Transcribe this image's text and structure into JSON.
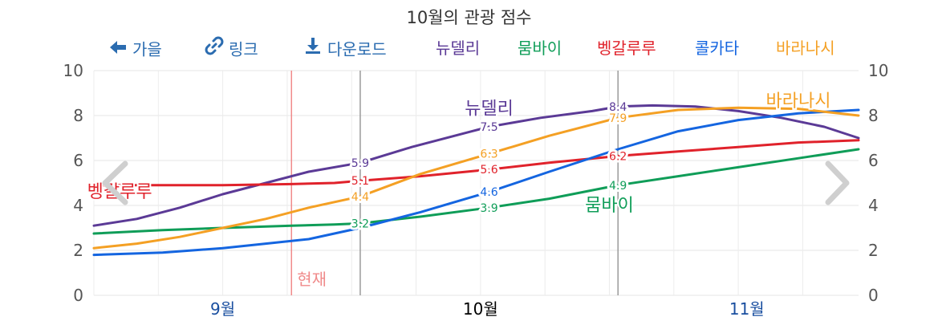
{
  "title": "10월의 관광 점수",
  "toolbar": {
    "back_label": "가을",
    "link_label": "링크",
    "download_label": "다운로드",
    "link_color": "#2b6cb0"
  },
  "icons": {
    "back": "arrow-left-icon",
    "link": "chain-link-icon",
    "download": "download-icon",
    "prev": "chevron-left-icon",
    "next": "chevron-right-icon"
  },
  "now_label": "현재",
  "chart_data": {
    "type": "line",
    "title": "10월의 관광 점수",
    "xlabel": "",
    "ylabel": "",
    "ylim": [
      0,
      10
    ],
    "y_ticks": [
      0,
      2,
      4,
      6,
      8,
      10
    ],
    "x_ticks": [
      {
        "label": "9월",
        "day": 15,
        "color": "#1a4fa0"
      },
      {
        "label": "10월",
        "day": 45,
        "color": "#000000"
      },
      {
        "label": "11월",
        "day": 76,
        "color": "#1a4fa0"
      }
    ],
    "x_range_days": [
      0,
      89
    ],
    "x_unit": "days from 1 Sep",
    "grid": true,
    "now_day": 23,
    "period_markers_days": [
      31,
      61
    ],
    "series": [
      {
        "name": "뉴델리",
        "color": "#5b3a96",
        "label_day": 46,
        "label_value": 8.3,
        "points": [
          [
            0,
            3.1
          ],
          [
            5,
            3.4
          ],
          [
            10,
            3.9
          ],
          [
            15,
            4.5
          ],
          [
            20,
            5.0
          ],
          [
            25,
            5.5
          ],
          [
            31,
            5.9
          ],
          [
            37,
            6.6
          ],
          [
            44,
            7.3
          ],
          [
            46,
            7.5
          ],
          [
            52,
            7.9
          ],
          [
            58,
            8.2
          ],
          [
            61,
            8.4
          ],
          [
            65,
            8.45
          ],
          [
            70,
            8.4
          ],
          [
            75,
            8.2
          ],
          [
            80,
            7.9
          ],
          [
            85,
            7.5
          ],
          [
            89,
            7.0
          ]
        ],
        "labels": [
          {
            "day": 31,
            "value": 5.9,
            "text": "5.9"
          },
          {
            "day": 46,
            "value": 7.5,
            "text": "7.5"
          },
          {
            "day": 61,
            "value": 8.4,
            "text": "8.4"
          }
        ]
      },
      {
        "name": "뭄바이",
        "color": "#0f9d58",
        "label_day": 60,
        "label_value": 4.0,
        "points": [
          [
            0,
            2.75
          ],
          [
            8,
            2.9
          ],
          [
            15,
            3.0
          ],
          [
            23,
            3.1
          ],
          [
            28,
            3.15
          ],
          [
            31,
            3.2
          ],
          [
            38,
            3.5
          ],
          [
            46,
            3.9
          ],
          [
            53,
            4.3
          ],
          [
            61,
            4.9
          ],
          [
            68,
            5.3
          ],
          [
            75,
            5.7
          ],
          [
            82,
            6.1
          ],
          [
            89,
            6.5
          ]
        ],
        "labels": [
          {
            "day": 31,
            "value": 3.2,
            "text": "3.2"
          },
          {
            "day": 46,
            "value": 3.9,
            "text": "3.9"
          },
          {
            "day": 61,
            "value": 4.9,
            "text": "4.9"
          }
        ]
      },
      {
        "name": "벵갈루루",
        "color": "#e0222b",
        "label_day": 3,
        "label_value": 4.6,
        "points": [
          [
            0,
            4.9
          ],
          [
            8,
            4.9
          ],
          [
            15,
            4.9
          ],
          [
            23,
            4.95
          ],
          [
            28,
            5.0
          ],
          [
            31,
            5.1
          ],
          [
            38,
            5.3
          ],
          [
            46,
            5.6
          ],
          [
            53,
            5.9
          ],
          [
            61,
            6.2
          ],
          [
            68,
            6.4
          ],
          [
            75,
            6.6
          ],
          [
            82,
            6.8
          ],
          [
            89,
            6.9
          ]
        ],
        "labels": [
          {
            "day": 31,
            "value": 5.1,
            "text": "5.1"
          },
          {
            "day": 46,
            "value": 5.6,
            "text": "5.6"
          },
          {
            "day": 61,
            "value": 6.2,
            "text": "6.2"
          }
        ]
      },
      {
        "name": "콜카타",
        "color": "#1465e0",
        "label_day": 0,
        "label_value": 0,
        "points": [
          [
            0,
            1.8
          ],
          [
            8,
            1.9
          ],
          [
            15,
            2.1
          ],
          [
            20,
            2.3
          ],
          [
            25,
            2.5
          ],
          [
            31,
            3.0
          ],
          [
            38,
            3.7
          ],
          [
            46,
            4.6
          ],
          [
            53,
            5.5
          ],
          [
            61,
            6.5
          ],
          [
            68,
            7.3
          ],
          [
            75,
            7.8
          ],
          [
            82,
            8.1
          ],
          [
            89,
            8.25
          ]
        ],
        "labels": [
          {
            "day": 46,
            "value": 4.6,
            "text": "4.6"
          }
        ]
      },
      {
        "name": "바라나시",
        "color": "#f4a024",
        "label_day": 82,
        "label_value": 8.65,
        "points": [
          [
            0,
            2.1
          ],
          [
            5,
            2.3
          ],
          [
            10,
            2.6
          ],
          [
            15,
            3.0
          ],
          [
            20,
            3.4
          ],
          [
            25,
            3.9
          ],
          [
            31,
            4.4
          ],
          [
            38,
            5.4
          ],
          [
            46,
            6.3
          ],
          [
            53,
            7.1
          ],
          [
            61,
            7.9
          ],
          [
            68,
            8.25
          ],
          [
            75,
            8.35
          ],
          [
            82,
            8.3
          ],
          [
            89,
            8.0
          ]
        ],
        "labels": [
          {
            "day": 31,
            "value": 4.4,
            "text": "4.4"
          },
          {
            "day": 46,
            "value": 6.3,
            "text": "6.3"
          },
          {
            "day": 61,
            "value": 7.9,
            "text": "7.9"
          }
        ]
      }
    ]
  }
}
